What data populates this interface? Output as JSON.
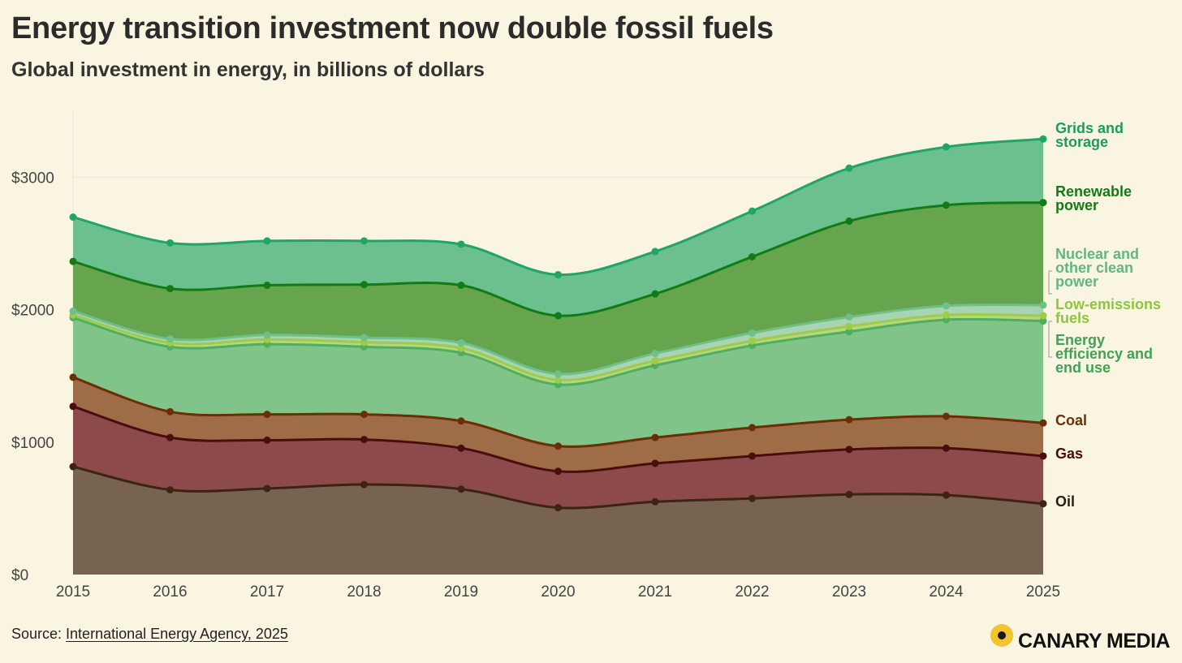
{
  "header": {
    "title": "Energy transition investment now double fossil fuels",
    "subtitle": "Global investment in energy, in billions of dollars"
  },
  "footer": {
    "source_prefix": "Source: ",
    "source_link": "International Energy Agency, 2025",
    "logo_text": "CANARY MEDIA"
  },
  "chart_data": {
    "type": "area",
    "stacked": true,
    "x": [
      2015,
      2016,
      2017,
      2018,
      2019,
      2020,
      2021,
      2022,
      2023,
      2024,
      2025
    ],
    "ylim": [
      0,
      3500
    ],
    "yticks": [
      0,
      1000,
      2000,
      3000
    ],
    "ytick_labels": [
      "$0",
      "$1000",
      "$2000",
      "$3000"
    ],
    "xtick_labels": [
      "2015",
      "2016",
      "2017",
      "2018",
      "2019",
      "2020",
      "2021",
      "2022",
      "2023",
      "2024",
      "2025"
    ],
    "grid": "horizontal",
    "legend": "direct labels at right end of series",
    "series": [
      {
        "name": "Oil",
        "label_lines": [
          "Oil"
        ],
        "values": [
          815,
          640,
          650,
          680,
          645,
          505,
          550,
          575,
          605,
          600,
          535
        ],
        "fill": "#776350",
        "line": "#3b2410",
        "text_color": "#2b1d10"
      },
      {
        "name": "Gas",
        "label_lines": [
          "Gas"
        ],
        "values": [
          455,
          395,
          365,
          340,
          310,
          275,
          290,
          320,
          340,
          355,
          360
        ],
        "fill": "#8d4a4a",
        "line": "#4a0d0d",
        "text_color": "#4a0d0d"
      },
      {
        "name": "Coal",
        "label_lines": [
          "Coal"
        ],
        "values": [
          220,
          195,
          195,
          190,
          205,
          190,
          195,
          215,
          225,
          240,
          250
        ],
        "fill": "#9e6c46",
        "line": "#6b2e06",
        "text_color": "#6b2e06"
      },
      {
        "name": "Energy efficiency and end use",
        "label_lines": [
          "Energy",
          "efficiency and",
          "end use"
        ],
        "values": [
          450,
          490,
          530,
          510,
          515,
          465,
          545,
          620,
          665,
          730,
          770
        ],
        "fill": "#80c489",
        "line": "#4fae5f",
        "text_color": "#3fa257"
      },
      {
        "name": "Low-emissions fuels",
        "label_lines": [
          "Low-emissions",
          "fuels"
        ],
        "values": [
          20,
          30,
          35,
          35,
          35,
          35,
          35,
          35,
          40,
          35,
          40
        ],
        "fill": "#b7d77e",
        "line": "#9ccc4a",
        "text_color": "#8cc63f"
      },
      {
        "name": "Nuclear and other clean power",
        "label_lines": [
          "Nuclear and",
          "other clean",
          "power"
        ],
        "values": [
          30,
          30,
          35,
          35,
          40,
          45,
          55,
          60,
          70,
          70,
          80
        ],
        "fill": "#a9d4b4",
        "line": "#6fbf8a",
        "text_color": "#5fb87e"
      },
      {
        "name": "Renewable power",
        "label_lines": [
          "Renewable",
          "power"
        ],
        "values": [
          375,
          380,
          375,
          400,
          435,
          440,
          450,
          575,
          725,
          760,
          775
        ],
        "fill": "#66a54e",
        "line": "#127a16",
        "text_color": "#127a16"
      },
      {
        "name": "Grids and storage",
        "label_lines": [
          "Grids and",
          "storage"
        ],
        "values": [
          335,
          345,
          335,
          330,
          310,
          310,
          320,
          345,
          400,
          440,
          480
        ],
        "fill": "#6bc08d",
        "line": "#1fa566",
        "text_color": "#1a9e5c"
      }
    ]
  }
}
